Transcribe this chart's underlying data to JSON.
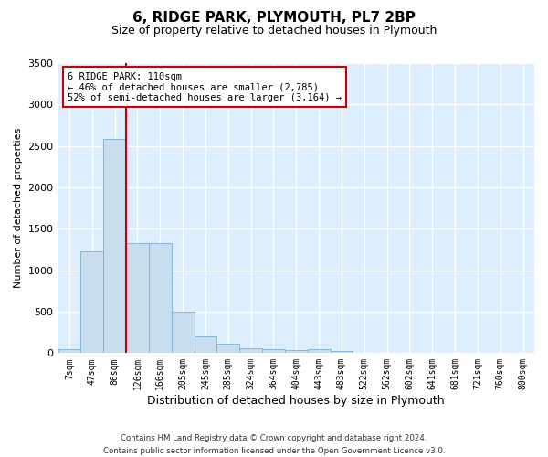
{
  "title": "6, RIDGE PARK, PLYMOUTH, PL7 2BP",
  "subtitle": "Size of property relative to detached houses in Plymouth",
  "xlabel": "Distribution of detached houses by size in Plymouth",
  "ylabel": "Number of detached properties",
  "bar_color": "#c8ddf0",
  "bar_edge_color": "#7aafd4",
  "background_color": "#ddeeff",
  "grid_color": "#ffffff",
  "categories": [
    "7sqm",
    "47sqm",
    "86sqm",
    "126sqm",
    "166sqm",
    "205sqm",
    "245sqm",
    "285sqm",
    "324sqm",
    "364sqm",
    "404sqm",
    "443sqm",
    "483sqm",
    "522sqm",
    "562sqm",
    "602sqm",
    "641sqm",
    "681sqm",
    "721sqm",
    "760sqm",
    "800sqm"
  ],
  "values": [
    50,
    1230,
    2580,
    1330,
    1330,
    500,
    200,
    110,
    55,
    45,
    40,
    45,
    30,
    5,
    5,
    5,
    5,
    5,
    5,
    5,
    5
  ],
  "ylim": [
    0,
    3500
  ],
  "yticks": [
    0,
    500,
    1000,
    1500,
    2000,
    2500,
    3000,
    3500
  ],
  "annotation_text": "6 RIDGE PARK: 110sqm\n← 46% of detached houses are smaller (2,785)\n52% of semi-detached houses are larger (3,164) →",
  "annotation_box_color": "#ffffff",
  "annotation_box_edge_color": "#cc0000",
  "line_color": "#cc0000",
  "footer_line1": "Contains HM Land Registry data © Crown copyright and database right 2024.",
  "footer_line2": "Contains public sector information licensed under the Open Government Licence v3.0."
}
